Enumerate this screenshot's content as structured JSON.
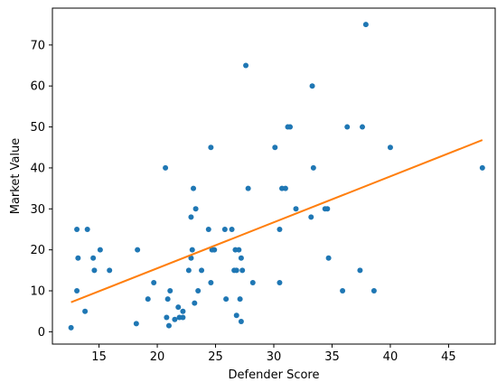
{
  "chart_data": {
    "type": "scatter",
    "title": "",
    "xlabel": "Defender Score",
    "ylabel": "Market Value",
    "xlim": [
      11,
      49
    ],
    "ylim": [
      -3,
      79
    ],
    "xticks": [
      15,
      20,
      25,
      30,
      35,
      40,
      45
    ],
    "yticks": [
      0,
      10,
      20,
      30,
      40,
      50,
      60,
      70
    ],
    "grid": false,
    "legend": "none",
    "colors": {
      "points": "#1f77b4",
      "trend": "#ff7f0e",
      "axis": "#000000"
    },
    "points": [
      {
        "x": 12.6,
        "y": 1
      },
      {
        "x": 13.1,
        "y": 25
      },
      {
        "x": 13.2,
        "y": 18
      },
      {
        "x": 13.1,
        "y": 10
      },
      {
        "x": 13.8,
        "y": 5
      },
      {
        "x": 14.0,
        "y": 25
      },
      {
        "x": 14.5,
        "y": 18
      },
      {
        "x": 14.6,
        "y": 15
      },
      {
        "x": 15.1,
        "y": 20
      },
      {
        "x": 15.9,
        "y": 15
      },
      {
        "x": 18.2,
        "y": 2
      },
      {
        "x": 18.3,
        "y": 20
      },
      {
        "x": 19.2,
        "y": 8
      },
      {
        "x": 19.7,
        "y": 12
      },
      {
        "x": 20.7,
        "y": 40
      },
      {
        "x": 20.8,
        "y": 3.5
      },
      {
        "x": 20.9,
        "y": 8
      },
      {
        "x": 21.0,
        "y": 1.5
      },
      {
        "x": 21.1,
        "y": 10
      },
      {
        "x": 21.5,
        "y": 3
      },
      {
        "x": 21.8,
        "y": 6
      },
      {
        "x": 21.9,
        "y": 3.5
      },
      {
        "x": 22.2,
        "y": 5
      },
      {
        "x": 22.2,
        "y": 3.5
      },
      {
        "x": 22.7,
        "y": 15
      },
      {
        "x": 22.9,
        "y": 28
      },
      {
        "x": 22.9,
        "y": 18
      },
      {
        "x": 23.0,
        "y": 20
      },
      {
        "x": 23.1,
        "y": 35
      },
      {
        "x": 23.2,
        "y": 7
      },
      {
        "x": 23.3,
        "y": 30
      },
      {
        "x": 23.5,
        "y": 10
      },
      {
        "x": 23.8,
        "y": 15
      },
      {
        "x": 24.4,
        "y": 25
      },
      {
        "x": 24.6,
        "y": 12
      },
      {
        "x": 24.6,
        "y": 45
      },
      {
        "x": 24.7,
        "y": 20
      },
      {
        "x": 24.9,
        "y": 20
      },
      {
        "x": 25.8,
        "y": 25
      },
      {
        "x": 25.9,
        "y": 8
      },
      {
        "x": 26.4,
        "y": 25
      },
      {
        "x": 26.6,
        "y": 15
      },
      {
        "x": 26.7,
        "y": 20
      },
      {
        "x": 26.8,
        "y": 15
      },
      {
        "x": 26.8,
        "y": 4
      },
      {
        "x": 27.0,
        "y": 20
      },
      {
        "x": 27.1,
        "y": 8
      },
      {
        "x": 27.2,
        "y": 18
      },
      {
        "x": 27.2,
        "y": 2.5
      },
      {
        "x": 27.3,
        "y": 15
      },
      {
        "x": 27.6,
        "y": 65
      },
      {
        "x": 27.8,
        "y": 35
      },
      {
        "x": 28.2,
        "y": 12
      },
      {
        "x": 30.1,
        "y": 45
      },
      {
        "x": 30.5,
        "y": 12
      },
      {
        "x": 30.5,
        "y": 25
      },
      {
        "x": 30.7,
        "y": 35
      },
      {
        "x": 31.0,
        "y": 35
      },
      {
        "x": 31.2,
        "y": 50
      },
      {
        "x": 31.4,
        "y": 50
      },
      {
        "x": 31.9,
        "y": 30
      },
      {
        "x": 33.2,
        "y": 28
      },
      {
        "x": 33.3,
        "y": 60
      },
      {
        "x": 33.4,
        "y": 40
      },
      {
        "x": 34.4,
        "y": 30
      },
      {
        "x": 34.6,
        "y": 30
      },
      {
        "x": 34.7,
        "y": 18
      },
      {
        "x": 35.9,
        "y": 10
      },
      {
        "x": 36.3,
        "y": 50
      },
      {
        "x": 37.4,
        "y": 15
      },
      {
        "x": 37.6,
        "y": 50
      },
      {
        "x": 37.9,
        "y": 75
      },
      {
        "x": 38.6,
        "y": 10
      },
      {
        "x": 40.0,
        "y": 45
      },
      {
        "x": 47.9,
        "y": 40
      }
    ],
    "trendline": [
      {
        "x": 12.6,
        "y": 7.2
      },
      {
        "x": 47.9,
        "y": 46.8
      }
    ]
  }
}
